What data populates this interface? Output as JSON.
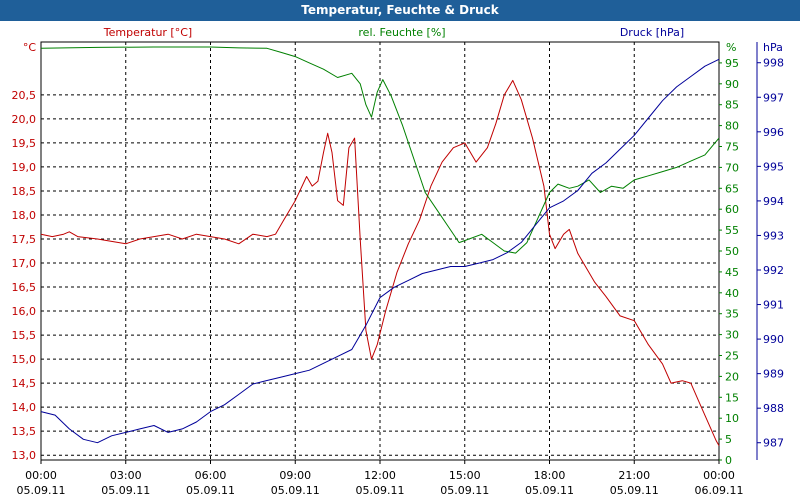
{
  "window": {
    "title": "Temperatur, Feuchte & Druck"
  },
  "chart_data": {
    "type": "line",
    "title": "Temperatur, Feuchte & Druck",
    "x_ticks": [
      {
        "time": "00:00",
        "date": "05.09.11"
      },
      {
        "time": "03:00",
        "date": "05.09.11"
      },
      {
        "time": "06:00",
        "date": "05.09.11"
      },
      {
        "time": "09:00",
        "date": "05.09.11"
      },
      {
        "time": "12:00",
        "date": "05.09.11"
      },
      {
        "time": "15:00",
        "date": "05.09.11"
      },
      {
        "time": "18:00",
        "date": "05.09.11"
      },
      {
        "time": "21:00",
        "date": "05.09.11"
      },
      {
        "time": "00:00",
        "date": "06.09.11"
      }
    ],
    "x_range_hours": [
      0,
      24
    ],
    "grid": true,
    "axes": {
      "temperature": {
        "label": "Temperatur [°C]",
        "unit": "°C",
        "color": "#c00000",
        "range": [
          12.9,
          21.6
        ],
        "ticks": [
          "13,0",
          "13,5",
          "14,0",
          "14,5",
          "15,0",
          "15,5",
          "16,0",
          "16,5",
          "17,0",
          "17,5",
          "18,0",
          "18,5",
          "19,0",
          "19,5",
          "20,0",
          "20,5"
        ],
        "tick_values": [
          13.0,
          13.5,
          14.0,
          14.5,
          15.0,
          15.5,
          16.0,
          16.5,
          17.0,
          17.5,
          18.0,
          18.5,
          19.0,
          19.5,
          20.0,
          20.5
        ]
      },
      "humidity": {
        "label": "rel. Feuchte [%]",
        "unit": "%",
        "color": "#008000",
        "range": [
          0,
          100
        ],
        "ticks": [
          "0",
          "5",
          "10",
          "15",
          "20",
          "25",
          "30",
          "35",
          "40",
          "45",
          "50",
          "55",
          "60",
          "65",
          "70",
          "75",
          "80",
          "85",
          "90",
          "95"
        ],
        "tick_values": [
          0,
          5,
          10,
          15,
          20,
          25,
          30,
          35,
          40,
          45,
          50,
          55,
          60,
          65,
          70,
          75,
          80,
          85,
          90,
          95
        ]
      },
      "pressure": {
        "label": "Druck [hPa]",
        "unit": "hPa",
        "color": "#000099",
        "range": [
          986.5,
          998.6
        ],
        "ticks": [
          "987",
          "988",
          "989",
          "990",
          "991",
          "992",
          "993",
          "994",
          "995",
          "996",
          "997",
          "998"
        ],
        "tick_values": [
          987,
          988,
          989,
          990,
          991,
          992,
          993,
          994,
          995,
          996,
          997,
          998
        ]
      }
    },
    "series": [
      {
        "name": "Temperatur [°C]",
        "axis": "temperature",
        "color": "#c00000",
        "points": [
          [
            0,
            17.6
          ],
          [
            0.4,
            17.55
          ],
          [
            0.8,
            17.6
          ],
          [
            1.0,
            17.65
          ],
          [
            1.3,
            17.55
          ],
          [
            2.0,
            17.5
          ],
          [
            2.5,
            17.45
          ],
          [
            3.0,
            17.4
          ],
          [
            3.5,
            17.5
          ],
          [
            4.0,
            17.55
          ],
          [
            4.5,
            17.6
          ],
          [
            5.0,
            17.5
          ],
          [
            5.5,
            17.6
          ],
          [
            6.0,
            17.55
          ],
          [
            6.5,
            17.5
          ],
          [
            7.0,
            17.4
          ],
          [
            7.5,
            17.6
          ],
          [
            8.0,
            17.55
          ],
          [
            8.3,
            17.6
          ],
          [
            8.6,
            17.9
          ],
          [
            9.0,
            18.3
          ],
          [
            9.4,
            18.8
          ],
          [
            9.6,
            18.6
          ],
          [
            9.8,
            18.7
          ],
          [
            10.0,
            19.3
          ],
          [
            10.15,
            19.7
          ],
          [
            10.3,
            19.3
          ],
          [
            10.5,
            18.3
          ],
          [
            10.7,
            18.2
          ],
          [
            10.9,
            19.4
          ],
          [
            11.1,
            19.6
          ],
          [
            11.3,
            17.5
          ],
          [
            11.5,
            15.6
          ],
          [
            11.7,
            15.0
          ],
          [
            11.9,
            15.3
          ],
          [
            12.2,
            16.0
          ],
          [
            12.6,
            16.8
          ],
          [
            13.0,
            17.4
          ],
          [
            13.4,
            17.9
          ],
          [
            13.8,
            18.6
          ],
          [
            14.2,
            19.1
          ],
          [
            14.6,
            19.4
          ],
          [
            15.0,
            19.5
          ],
          [
            15.4,
            19.1
          ],
          [
            15.8,
            19.4
          ],
          [
            16.1,
            19.9
          ],
          [
            16.4,
            20.5
          ],
          [
            16.7,
            20.8
          ],
          [
            17.0,
            20.4
          ],
          [
            17.4,
            19.6
          ],
          [
            17.8,
            18.6
          ],
          [
            18.0,
            17.6
          ],
          [
            18.2,
            17.3
          ],
          [
            18.5,
            17.6
          ],
          [
            18.7,
            17.7
          ],
          [
            19.0,
            17.2
          ],
          [
            19.3,
            16.9
          ],
          [
            19.6,
            16.6
          ],
          [
            20.0,
            16.3
          ],
          [
            20.5,
            15.9
          ],
          [
            21.0,
            15.8
          ],
          [
            21.5,
            15.3
          ],
          [
            22.0,
            14.9
          ],
          [
            22.3,
            14.5
          ],
          [
            22.7,
            14.55
          ],
          [
            23.0,
            14.5
          ],
          [
            23.3,
            14.1
          ],
          [
            23.6,
            13.7
          ],
          [
            23.9,
            13.3
          ],
          [
            24.0,
            13.2
          ]
        ]
      },
      {
        "name": "rel. Feuchte [%]",
        "axis": "humidity",
        "color": "#008000",
        "points": [
          [
            0,
            98.5
          ],
          [
            2,
            98.7
          ],
          [
            4,
            98.8
          ],
          [
            6,
            98.8
          ],
          [
            7,
            98.6
          ],
          [
            8,
            98.5
          ],
          [
            8.5,
            97.5
          ],
          [
            9.0,
            96.5
          ],
          [
            9.5,
            95.0
          ],
          [
            10.0,
            93.5
          ],
          [
            10.5,
            91.5
          ],
          [
            11.0,
            92.5
          ],
          [
            11.3,
            90.0
          ],
          [
            11.5,
            85.0
          ],
          [
            11.7,
            82.0
          ],
          [
            11.9,
            88.0
          ],
          [
            12.1,
            91.0
          ],
          [
            12.4,
            87.0
          ],
          [
            12.8,
            80.0
          ],
          [
            13.2,
            72.0
          ],
          [
            13.6,
            64.0
          ],
          [
            14.0,
            60.0
          ],
          [
            14.4,
            56.0
          ],
          [
            14.8,
            52.0
          ],
          [
            15.2,
            53.0
          ],
          [
            15.6,
            54.0
          ],
          [
            16.0,
            52.0
          ],
          [
            16.4,
            50.0
          ],
          [
            16.8,
            49.5
          ],
          [
            17.2,
            52.0
          ],
          [
            17.6,
            58.0
          ],
          [
            18.0,
            64.0
          ],
          [
            18.3,
            66.0
          ],
          [
            18.7,
            65.0
          ],
          [
            19.0,
            65.5
          ],
          [
            19.4,
            67.0
          ],
          [
            19.8,
            64.0
          ],
          [
            20.2,
            65.5
          ],
          [
            20.6,
            65.0
          ],
          [
            21.0,
            67.0
          ],
          [
            21.5,
            68.0
          ],
          [
            22.0,
            69.0
          ],
          [
            22.5,
            70.0
          ],
          [
            23.0,
            71.5
          ],
          [
            23.5,
            73.0
          ],
          [
            24.0,
            77.0
          ]
        ]
      },
      {
        "name": "Druck [hPa]",
        "axis": "pressure",
        "color": "#000099",
        "points": [
          [
            0,
            987.9
          ],
          [
            0.5,
            987.8
          ],
          [
            1.0,
            987.4
          ],
          [
            1.5,
            987.1
          ],
          [
            2.0,
            987.0
          ],
          [
            2.5,
            987.2
          ],
          [
            3.0,
            987.3
          ],
          [
            3.5,
            987.4
          ],
          [
            4.0,
            987.5
          ],
          [
            4.5,
            987.3
          ],
          [
            5.0,
            987.4
          ],
          [
            5.5,
            987.6
          ],
          [
            6.0,
            987.9
          ],
          [
            6.5,
            988.1
          ],
          [
            7.0,
            988.4
          ],
          [
            7.5,
            988.7
          ],
          [
            8.0,
            988.8
          ],
          [
            8.5,
            988.9
          ],
          [
            9.0,
            989.0
          ],
          [
            9.5,
            989.1
          ],
          [
            10.0,
            989.3
          ],
          [
            10.5,
            989.5
          ],
          [
            11.0,
            989.7
          ],
          [
            11.5,
            990.4
          ],
          [
            12.0,
            991.2
          ],
          [
            12.5,
            991.5
          ],
          [
            13.0,
            991.7
          ],
          [
            13.5,
            991.9
          ],
          [
            14.0,
            992.0
          ],
          [
            14.5,
            992.1
          ],
          [
            15.0,
            992.1
          ],
          [
            15.5,
            992.2
          ],
          [
            16.0,
            992.3
          ],
          [
            16.5,
            992.5
          ],
          [
            17.0,
            992.8
          ],
          [
            17.5,
            993.3
          ],
          [
            18.0,
            993.8
          ],
          [
            18.5,
            994.0
          ],
          [
            19.0,
            994.3
          ],
          [
            19.5,
            994.8
          ],
          [
            20.0,
            995.1
          ],
          [
            20.5,
            995.5
          ],
          [
            21.0,
            995.9
          ],
          [
            21.5,
            996.4
          ],
          [
            22.0,
            996.9
          ],
          [
            22.5,
            997.3
          ],
          [
            23.0,
            997.6
          ],
          [
            23.5,
            997.9
          ],
          [
            24.0,
            998.1
          ]
        ]
      }
    ]
  }
}
